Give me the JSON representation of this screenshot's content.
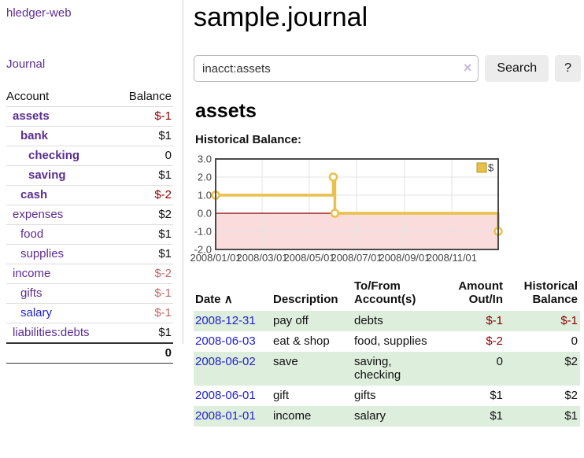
{
  "sidebar": {
    "app_title": "hledger-web",
    "nav": {
      "journal_label": "Journal"
    },
    "accounts_table": {
      "headers": {
        "account": "Account",
        "balance": "Balance"
      },
      "rows": [
        {
          "name": "assets",
          "depth": 1,
          "bold": true,
          "link_color": "purple",
          "balance": "$-1",
          "balance_class": "neg-strong",
          "balance_bold": true
        },
        {
          "name": "bank",
          "depth": 2,
          "bold": true,
          "link_color": "purple",
          "balance": "$1",
          "balance_class": "",
          "balance_bold": true
        },
        {
          "name": "checking",
          "depth": 3,
          "bold": true,
          "link_color": "purple",
          "balance": "0",
          "balance_class": "",
          "balance_bold": true
        },
        {
          "name": "saving",
          "depth": 3,
          "bold": true,
          "link_color": "purple",
          "balance": "$1",
          "balance_class": "",
          "balance_bold": true
        },
        {
          "name": "cash",
          "depth": 2,
          "bold": true,
          "link_color": "purple",
          "balance": "$-2",
          "balance_class": "neg-strong",
          "balance_bold": true
        },
        {
          "name": "expenses",
          "depth": 1,
          "bold": false,
          "link_color": "purple",
          "balance": "$2",
          "balance_class": "",
          "balance_bold": false
        },
        {
          "name": "food",
          "depth": 2,
          "bold": false,
          "link_color": "purple",
          "balance": "$1",
          "balance_class": "",
          "balance_bold": false
        },
        {
          "name": "supplies",
          "depth": 2,
          "bold": false,
          "link_color": "purple",
          "balance": "$1",
          "balance_class": "",
          "balance_bold": false
        },
        {
          "name": "income",
          "depth": 1,
          "bold": false,
          "link_color": "purple",
          "balance": "$-2",
          "balance_class": "neg-weak",
          "balance_bold": false
        },
        {
          "name": "gifts",
          "depth": 2,
          "bold": false,
          "link_color": "purple",
          "balance": "$-1",
          "balance_class": "neg-weak",
          "balance_bold": false
        },
        {
          "name": "salary",
          "depth": 2,
          "bold": false,
          "link_color": "blue",
          "balance": "$-1",
          "balance_class": "neg-weak",
          "balance_bold": false
        },
        {
          "name": "liabilities:debts",
          "depth": 1,
          "bold": false,
          "link_color": "purple",
          "balance": "$1",
          "balance_class": "",
          "balance_bold": false
        }
      ],
      "total": "0"
    }
  },
  "main": {
    "title": "sample.journal",
    "search": {
      "value": "inacct:assets",
      "clear_icon": "×",
      "button_label": "Search",
      "help_label": "?"
    },
    "account_heading": "assets",
    "chart_label": "Historical Balance:",
    "register_table": {
      "headers": {
        "date": "Date",
        "sort_icon": "∧",
        "description": "Description",
        "tofrom": "To/From\nAccount(s)",
        "amount": "Amount\nOut/In",
        "historical": "Historical\nBalance"
      },
      "rows": [
        {
          "date": "2008-12-31",
          "description": "pay off",
          "accounts": "debts",
          "amount": "$-1",
          "amount_neg": true,
          "balance": "$-1",
          "balance_neg": true,
          "shaded": true
        },
        {
          "date": "2008-06-03",
          "description": "eat & shop",
          "accounts": "food, supplies",
          "amount": "$-2",
          "amount_neg": true,
          "balance": "0",
          "balance_neg": false,
          "shaded": false
        },
        {
          "date": "2008-06-02",
          "description": "save",
          "accounts": "saving, checking",
          "amount": "0",
          "amount_neg": false,
          "balance": "$2",
          "balance_neg": false,
          "shaded": true
        },
        {
          "date": "2008-06-01",
          "description": "gift",
          "accounts": "gifts",
          "amount": "$1",
          "amount_neg": false,
          "balance": "$2",
          "balance_neg": false,
          "shaded": false
        },
        {
          "date": "2008-01-01",
          "description": "income",
          "accounts": "salary",
          "amount": "$1",
          "amount_neg": false,
          "balance": "$1",
          "balance_neg": false,
          "shaded": true
        }
      ]
    }
  },
  "chart_data": {
    "type": "line",
    "step": true,
    "title": "Historical Balance",
    "series": [
      {
        "name": "$",
        "color": "#e8c04a",
        "points": [
          {
            "date": "2008-01-01",
            "day": 0,
            "value": 1
          },
          {
            "date": "2008-06-01",
            "day": 152,
            "value": 2
          },
          {
            "date": "2008-06-03",
            "day": 154,
            "value": 0
          },
          {
            "date": "2008-12-31",
            "day": 365,
            "value": -1
          }
        ]
      }
    ],
    "xlim_days": [
      0,
      365
    ],
    "ylim": [
      -2,
      3
    ],
    "yticks": [
      3,
      2,
      1,
      0,
      -1,
      -2
    ],
    "xticks": [
      {
        "label": "2008/01/01",
        "day": 0
      },
      {
        "label": "2008/03/01",
        "day": 60
      },
      {
        "label": "2008/05/01",
        "day": 121
      },
      {
        "label": "2008/07/01",
        "day": 182
      },
      {
        "label": "2008/09/01",
        "day": 244
      },
      {
        "label": "2008/11/01",
        "day": 305
      }
    ],
    "legend": {
      "position": "top-right",
      "label": "$"
    },
    "grid": true,
    "negative_region_fill": "#fbdcdc",
    "zero_line_color": "#8b0000",
    "border_color": "#4a4a4a",
    "grid_color": "#e3e3e3",
    "tick_label_color": "#444"
  },
  "colors": {
    "link_purple": "#5c2d91",
    "link_blue": "#2222d5",
    "negative_strong": "#8b0000",
    "negative_weak": "#c16868",
    "row_shade_green": "#ddeedd",
    "chart_line_gold": "#e8c04a",
    "chart_negative_pink": "#fbdcdc"
  }
}
